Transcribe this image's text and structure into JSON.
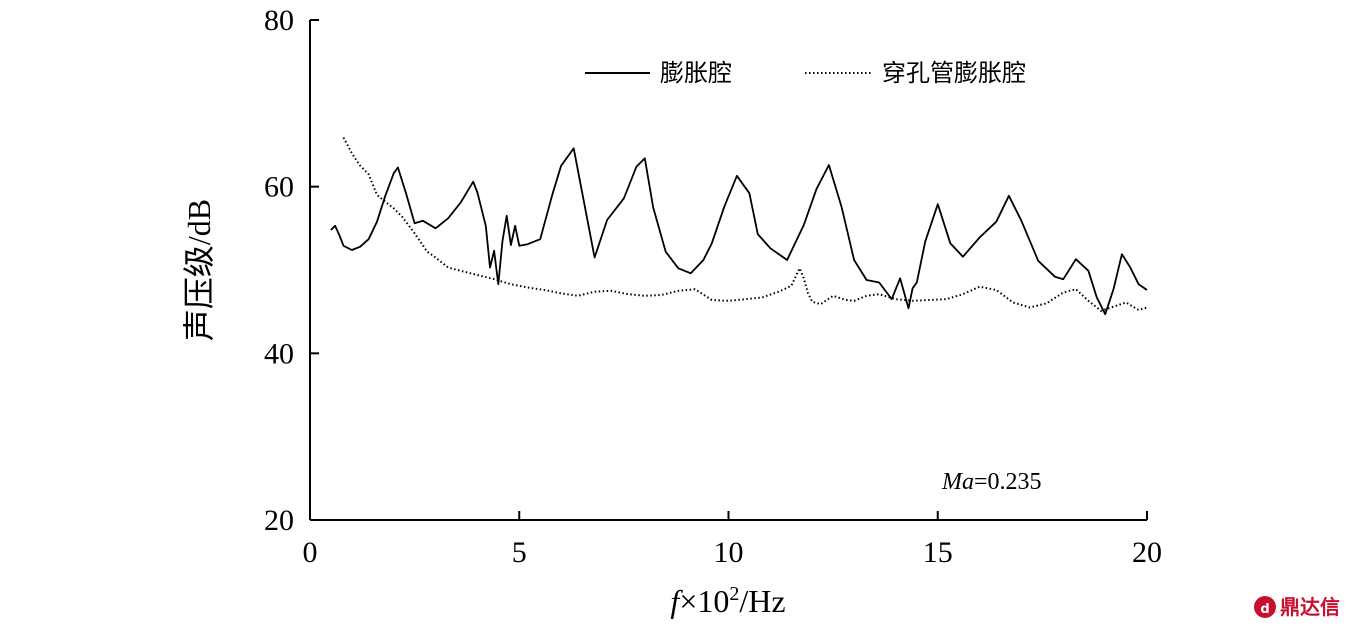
{
  "chart_data": {
    "type": "line",
    "xlabel": "f×10²/Hz",
    "xlabel_parts": {
      "var": "f",
      "rest": "×10",
      "sup": "2",
      "unit": "/Hz"
    },
    "ylabel": "声压级/dB",
    "xlim": [
      0,
      20
    ],
    "ylim": [
      20,
      80
    ],
    "xticks": [
      0,
      5,
      10,
      15,
      20
    ],
    "yticks": [
      20,
      40,
      60,
      80
    ],
    "grid": false,
    "legend_position": "top-right",
    "annotation": {
      "var": "Ma",
      "rest": "=0.235"
    },
    "series": [
      {
        "name": "膨胀腔",
        "style": "solid",
        "x": [
          0.5,
          0.6,
          0.7,
          0.8,
          1.0,
          1.2,
          1.4,
          1.6,
          1.8,
          2.0,
          2.1,
          2.3,
          2.5,
          2.7,
          3.0,
          3.3,
          3.6,
          3.9,
          4.0,
          4.2,
          4.3,
          4.4,
          4.5,
          4.6,
          4.7,
          4.8,
          4.9,
          5.0,
          5.2,
          5.5,
          5.8,
          6.0,
          6.3,
          6.5,
          6.8,
          7.1,
          7.5,
          7.8,
          8.0,
          8.2,
          8.5,
          8.8,
          9.1,
          9.4,
          9.6,
          9.9,
          10.2,
          10.5,
          10.7,
          11.0,
          11.4,
          11.8,
          12.1,
          12.4,
          12.7,
          13.0,
          13.3,
          13.6,
          13.9,
          14.1,
          14.3,
          14.4,
          14.5,
          14.7,
          15.0,
          15.3,
          15.6,
          16.0,
          16.4,
          16.7,
          17.0,
          17.4,
          17.8,
          18.0,
          18.3,
          18.6,
          18.8,
          19.0,
          19.2,
          19.4,
          19.6,
          19.8,
          20.0
        ],
        "values": [
          54.8,
          55.3,
          54.2,
          52.9,
          52.4,
          52.8,
          53.7,
          55.8,
          58.9,
          61.6,
          62.3,
          59.1,
          55.6,
          55.9,
          55.0,
          56.2,
          58.1,
          60.6,
          59.3,
          55.3,
          50.3,
          52.3,
          48.3,
          53.5,
          56.5,
          53.0,
          55.3,
          52.9,
          53.1,
          53.7,
          59.2,
          62.5,
          64.6,
          59.4,
          51.5,
          56.0,
          58.6,
          62.4,
          63.4,
          57.5,
          52.2,
          50.2,
          49.6,
          51.2,
          53.2,
          57.6,
          61.3,
          59.2,
          54.3,
          52.6,
          51.2,
          55.4,
          59.7,
          62.6,
          57.6,
          51.2,
          48.8,
          48.5,
          46.5,
          49.0,
          45.4,
          47.8,
          48.5,
          53.4,
          57.9,
          53.2,
          51.6,
          53.9,
          55.8,
          58.9,
          55.9,
          51.1,
          49.2,
          48.9,
          51.3,
          49.9,
          46.7,
          44.7,
          47.7,
          51.9,
          50.3,
          48.3,
          47.6
        ]
      },
      {
        "name": "穿孔管膨胀腔",
        "style": "dotted",
        "x": [
          0.8,
          1.0,
          1.2,
          1.4,
          1.6,
          1.8,
          2.0,
          2.2,
          2.5,
          2.8,
          3.0,
          3.3,
          3.6,
          4.0,
          4.4,
          4.8,
          5.2,
          5.6,
          6.0,
          6.4,
          6.8,
          7.2,
          7.6,
          8.0,
          8.4,
          8.8,
          9.2,
          9.6,
          10.0,
          10.4,
          10.8,
          11.2,
          11.5,
          11.7,
          11.8,
          11.9,
          12.0,
          12.2,
          12.5,
          12.8,
          13.0,
          13.3,
          13.6,
          14.0,
          14.4,
          14.8,
          15.2,
          15.6,
          16.0,
          16.4,
          16.8,
          17.2,
          17.6,
          18.0,
          18.3,
          18.6,
          18.9,
          19.2,
          19.5,
          19.8,
          20.0
        ],
        "values": [
          65.9,
          64.0,
          62.5,
          61.5,
          59.0,
          58.2,
          57.4,
          56.4,
          54.4,
          52.2,
          51.5,
          50.3,
          49.9,
          49.4,
          48.9,
          48.3,
          47.9,
          47.6,
          47.2,
          46.9,
          47.4,
          47.5,
          47.1,
          46.9,
          47.0,
          47.5,
          47.7,
          46.4,
          46.3,
          46.5,
          46.7,
          47.4,
          48.1,
          50.2,
          49.0,
          47.2,
          46.2,
          45.9,
          46.9,
          46.4,
          46.3,
          46.9,
          47.1,
          46.5,
          46.3,
          46.4,
          46.5,
          47.1,
          48.0,
          47.6,
          46.1,
          45.5,
          46.0,
          47.3,
          47.7,
          46.3,
          45.1,
          45.6,
          46.1,
          45.2,
          45.5
        ]
      }
    ]
  },
  "watermark": "鼎达信"
}
